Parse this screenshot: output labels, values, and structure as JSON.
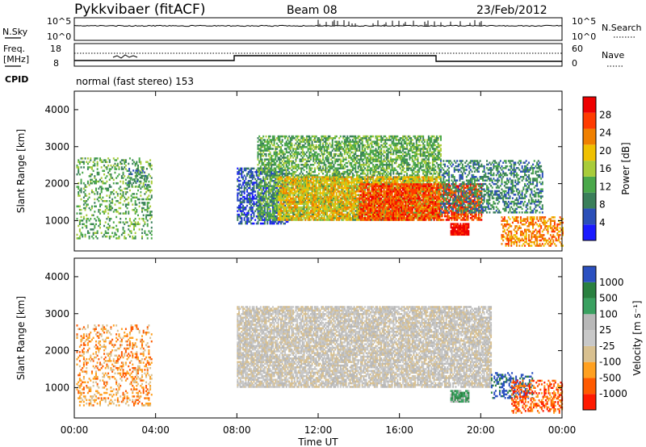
{
  "header": {
    "station": "Pykkvibaer (fitACF)",
    "beam": "Beam 08",
    "date": "23/Feb/2012"
  },
  "top_panels": {
    "nsky_label": "N.Sky",
    "nsearch_label": "N.Search",
    "nsky_ticks": [
      "10^5",
      "10^0"
    ],
    "nsearch_ticks": [
      "10^5",
      "10^0"
    ],
    "freq_label_1": "Freq.",
    "freq_label_2": "[MHz]",
    "freq_ticks": [
      "18",
      "8"
    ],
    "nave_label": "Nave",
    "nave_ticks": [
      "60",
      "0"
    ],
    "cpid_label": "CPID",
    "cpid_text": "normal (fast stereo) 153"
  },
  "colors": {
    "power": [
      "#1a1aff",
      "#2b4fb8",
      "#3a7f5a",
      "#4aa84a",
      "#a8cc3a",
      "#f0c000",
      "#f08000",
      "#ff3b00",
      "#ee0000"
    ],
    "velocity": [
      "#ff1a00",
      "#ff5a00",
      "#ffa020",
      "#d8c090",
      "#c8c8c8",
      "#b8b8b8",
      "#3aa060",
      "#2a8040",
      "#2b50c0"
    ]
  },
  "chart_data": [
    {
      "type": "heatmap",
      "name": "power_panel",
      "ylabel": "Slant Range [km]",
      "yticks": [
        "1000",
        "2000",
        "3000",
        "4000"
      ],
      "ylim": [
        180,
        4500
      ],
      "xlim": [
        0,
        24
      ],
      "colorbar_label": "Power [dB]",
      "colorbar_ticks": [
        "4",
        "8",
        "12",
        "16",
        "20",
        "24",
        "28"
      ],
      "regions": [
        {
          "x0": 0.1,
          "x1": 3.8,
          "y0": 500,
          "y1": 2700,
          "level": 3,
          "density": 0.28
        },
        {
          "x0": 2.6,
          "x1": 3.6,
          "y0": 1900,
          "y1": 2400,
          "level": 2,
          "density": 0.4
        },
        {
          "x0": 8.0,
          "x1": 10.5,
          "y0": 900,
          "y1": 2400,
          "level": 1,
          "density": 0.55
        },
        {
          "x0": 9.0,
          "x1": 18.0,
          "y0": 1000,
          "y1": 3300,
          "level": 3,
          "density": 0.6
        },
        {
          "x0": 10.0,
          "x1": 18.0,
          "y0": 1000,
          "y1": 2200,
          "level": 5,
          "density": 0.65
        },
        {
          "x0": 14.0,
          "x1": 20.0,
          "y0": 1000,
          "y1": 2000,
          "level": 7,
          "density": 0.7
        },
        {
          "x0": 18.5,
          "x1": 19.4,
          "y0": 600,
          "y1": 900,
          "level": 8,
          "density": 0.95
        },
        {
          "x0": 18.0,
          "x1": 23.0,
          "y0": 1200,
          "y1": 2600,
          "level": 2,
          "density": 0.45
        },
        {
          "x0": 21.0,
          "x1": 24.0,
          "y0": 300,
          "y1": 1100,
          "level": 6,
          "density": 0.5
        }
      ]
    },
    {
      "type": "heatmap",
      "name": "velocity_panel",
      "ylabel": "Slant Range [km]",
      "yticks": [
        "1000",
        "2000",
        "3000",
        "4000"
      ],
      "ylim": [
        180,
        4500
      ],
      "xlim": [
        0,
        24
      ],
      "xlabel": "Time UT",
      "xticks": [
        "00:00",
        "04:00",
        "08:00",
        "12:00",
        "16:00",
        "20:00",
        "00:00"
      ],
      "colorbar_label": "Velocity [m s⁻¹]",
      "colorbar_ticks": [
        "-1000",
        "-500",
        "-100",
        "-25",
        "25",
        "100",
        "500",
        "1000"
      ],
      "regions": [
        {
          "x0": 0.1,
          "x1": 3.8,
          "y0": 500,
          "y1": 2700,
          "level": 2,
          "density": 0.28
        },
        {
          "x0": 8.0,
          "x1": 20.5,
          "y0": 1000,
          "y1": 3200,
          "level": 4,
          "density": 0.78
        },
        {
          "x0": 18.5,
          "x1": 19.4,
          "y0": 600,
          "y1": 900,
          "level": 6,
          "density": 0.95
        },
        {
          "x0": 20.5,
          "x1": 22.5,
          "y0": 700,
          "y1": 1400,
          "level": 8,
          "density": 0.4
        },
        {
          "x0": 21.5,
          "x1": 24.0,
          "y0": 300,
          "y1": 1200,
          "level": 1,
          "density": 0.4
        }
      ]
    }
  ]
}
